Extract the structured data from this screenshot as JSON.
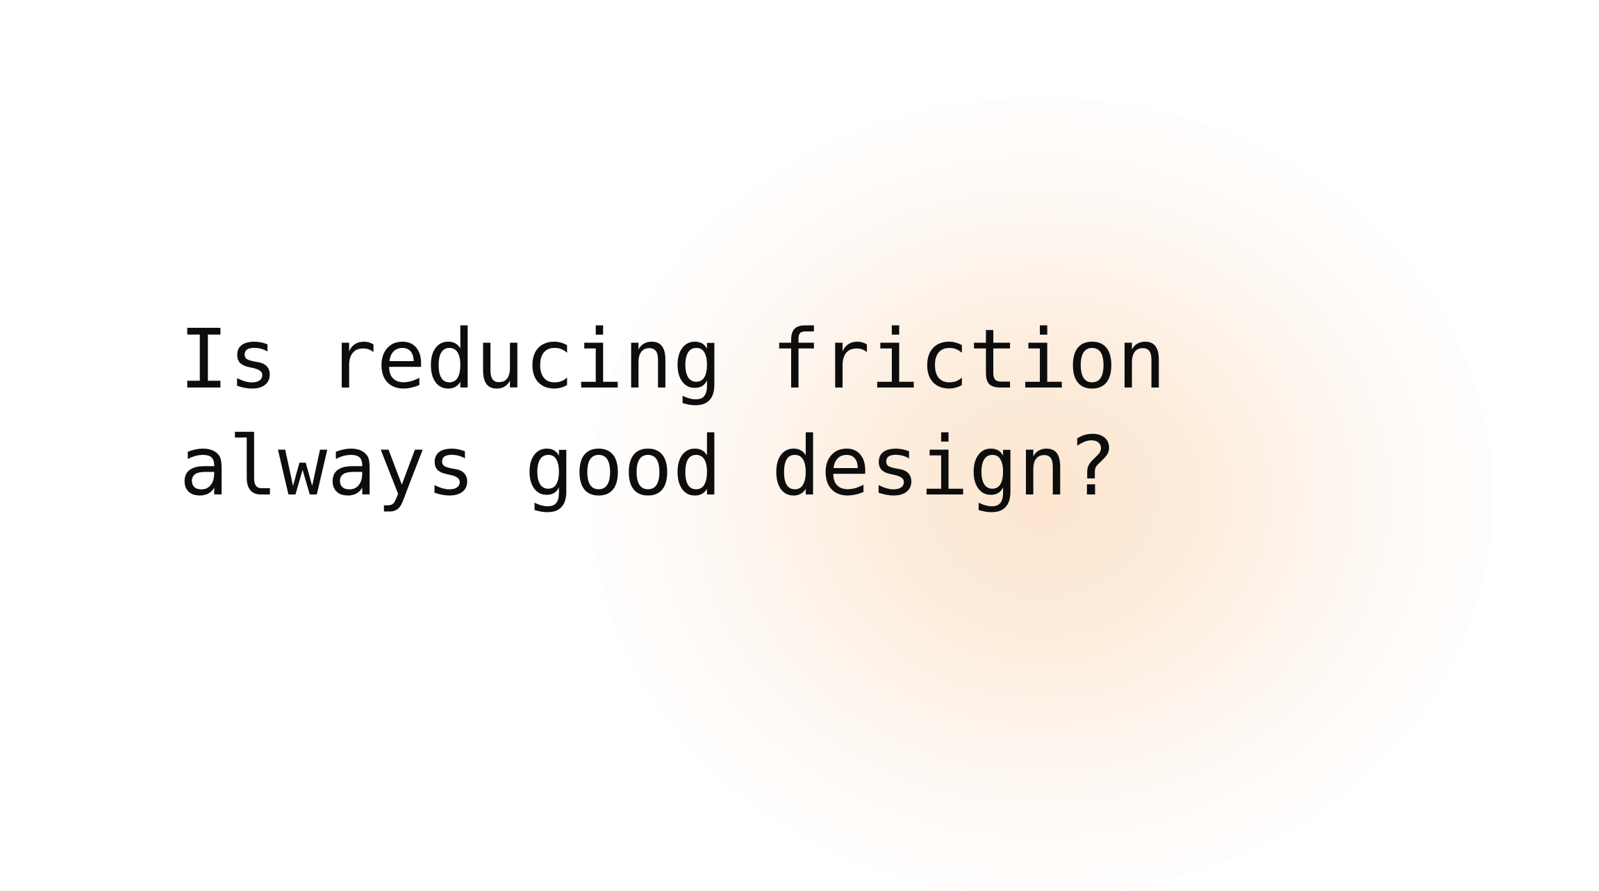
{
  "slide": {
    "headline_lines": [
      "Is reducing friction",
      "always good design?"
    ],
    "text_color": "#0d0d0d",
    "glow_color": "#fce4cd",
    "background_color": "#ffffff"
  }
}
